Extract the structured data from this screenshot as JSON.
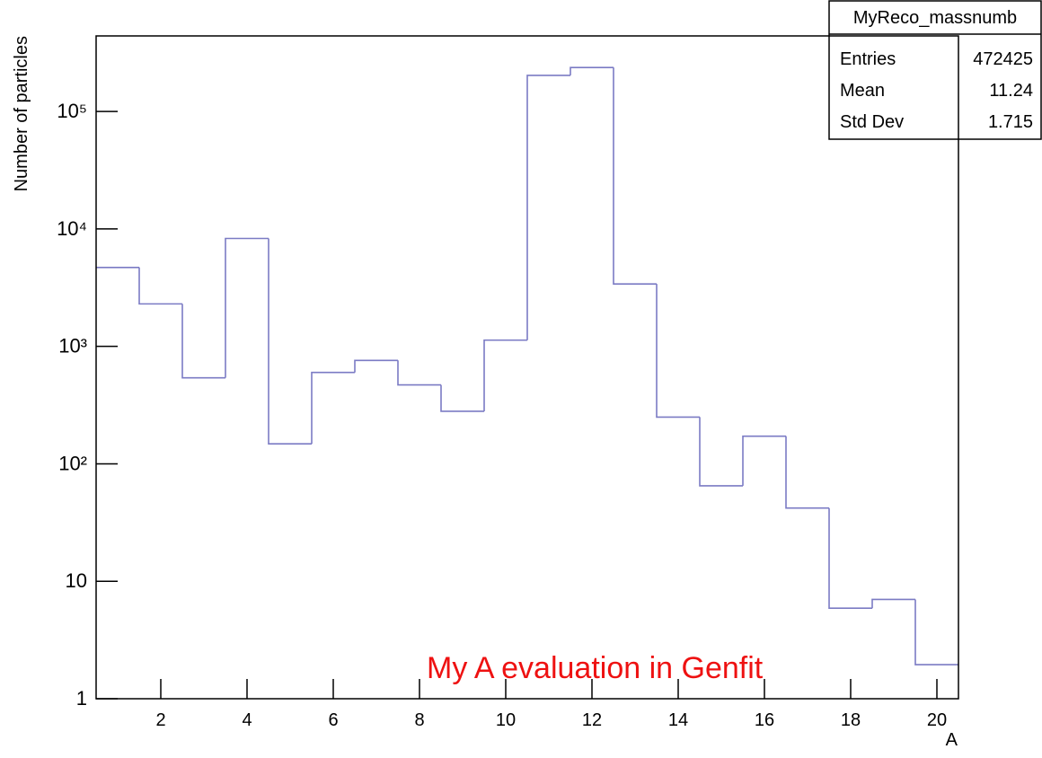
{
  "chart_data": {
    "type": "histogram",
    "x_label": "A",
    "y_label": "Number of particles",
    "bins": [
      0.5,
      1.5,
      2.5,
      3.5,
      4.5,
      5.5,
      6.5,
      7.5,
      8.5,
      9.5,
      10.5,
      11.5,
      12.5,
      13.5,
      14.5,
      15.5,
      16.5,
      17.5,
      18.5,
      19.5,
      20.5
    ],
    "values": [
      4700,
      2300,
      540,
      8300,
      148,
      600,
      760,
      470,
      280,
      1130,
      203000,
      237000,
      3400,
      250,
      65,
      172,
      42,
      5.9,
      7,
      1.95
    ],
    "color": "#7b7bc4",
    "xlim": [
      0.5,
      20.5
    ],
    "xticks": [
      2,
      4,
      6,
      8,
      10,
      12,
      14,
      16,
      18,
      20
    ],
    "ylim": [
      1,
      440000
    ],
    "log_y": true,
    "yticks": [
      1,
      10,
      {
        "value": 100,
        "label": "10²"
      },
      {
        "value": 1000,
        "label": "10³"
      },
      {
        "value": 10000,
        "label": "10⁴"
      },
      {
        "value": 100000,
        "label": "10⁵"
      }
    ],
    "annotation": {
      "text": "My A evaluation in Genfit",
      "color": "#ee1111"
    },
    "stats_box": {
      "title": "MyReco_massnumb",
      "rows": [
        {
          "label": "Entries",
          "value": 472425
        },
        {
          "label": "Mean",
          "value": 11.24
        },
        {
          "label": "Std Dev",
          "value": 1.715
        }
      ]
    }
  }
}
